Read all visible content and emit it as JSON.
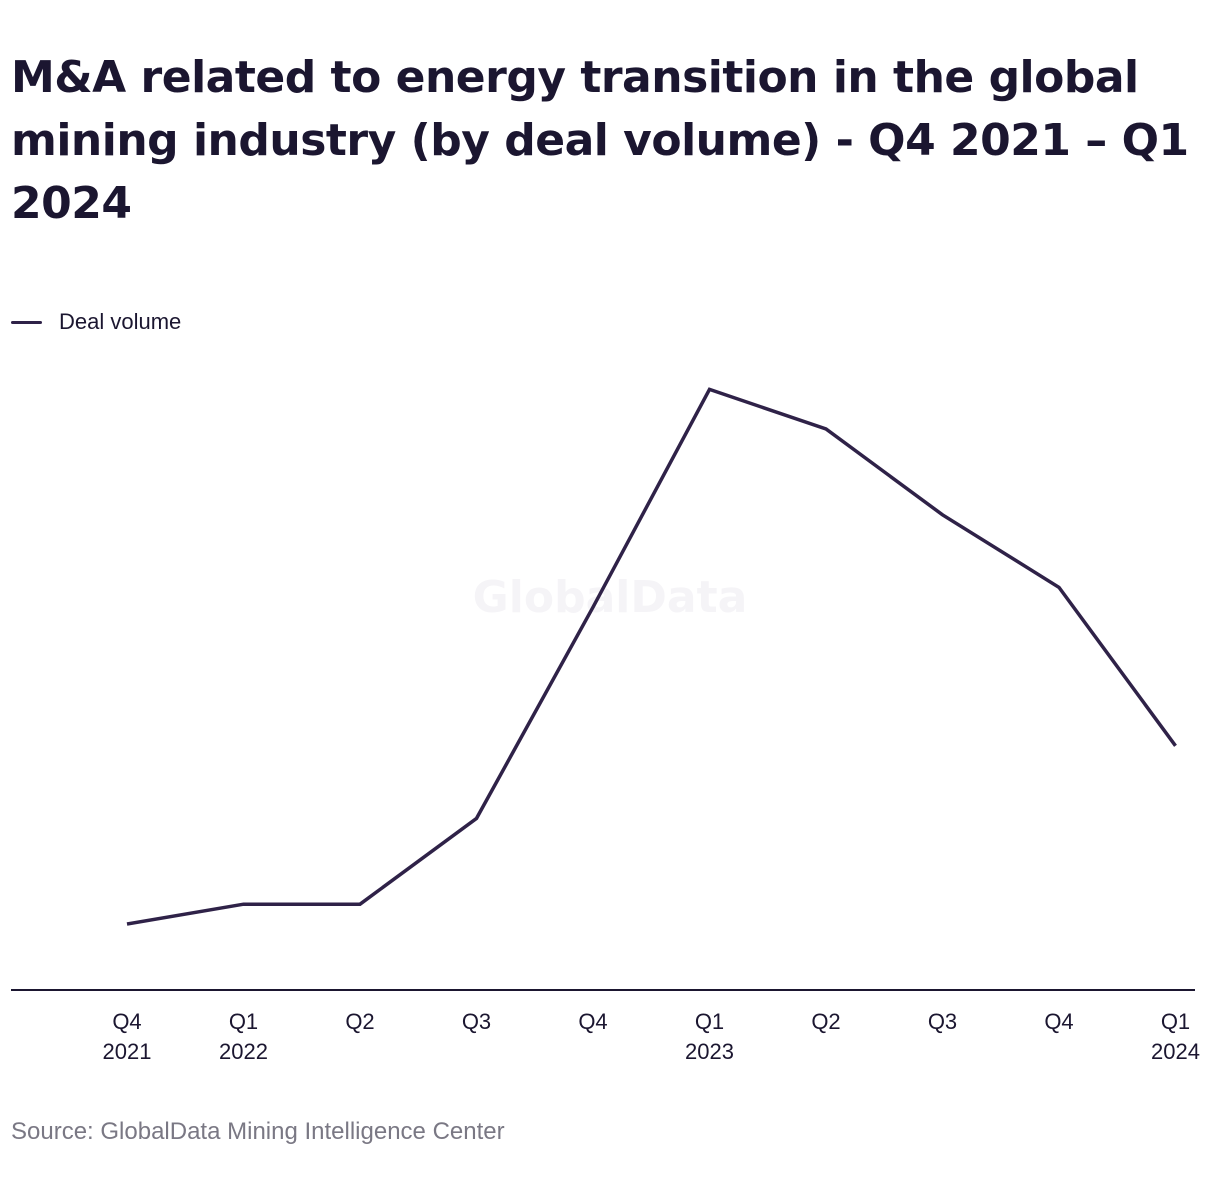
{
  "title": "M&A related to energy transition in the global mining industry (by deal volume) - Q4 2021 – Q1 2024",
  "watermark": "GlobalData",
  "source": "Source: GlobalData Mining Intelligence Center",
  "colors": {
    "series": "#2f2248",
    "text": "#1b1630",
    "muted": "#7a7884",
    "axis": "#1b1630"
  },
  "chart_data": {
    "type": "line",
    "title": "M&A related to energy transition in the global mining industry (by deal volume) - Q4 2021 – Q1 2024",
    "xlabel": "",
    "ylabel": "",
    "categories": [
      [
        "Q4",
        "2021"
      ],
      [
        "Q1",
        "2022"
      ],
      [
        "Q2",
        ""
      ],
      [
        "Q3",
        ""
      ],
      [
        "Q4",
        ""
      ],
      [
        "Q1",
        "2023"
      ],
      [
        "Q2",
        ""
      ],
      [
        "Q3",
        ""
      ],
      [
        "Q4",
        ""
      ],
      [
        "Q1",
        "2024"
      ]
    ],
    "series": [
      {
        "name": "Deal volume",
        "values": [
          10,
          13,
          13,
          26,
          58,
          91,
          85,
          72,
          61,
          37
        ]
      }
    ],
    "ylim": [
      0,
      100
    ],
    "grid": false,
    "legend": "top-left"
  }
}
